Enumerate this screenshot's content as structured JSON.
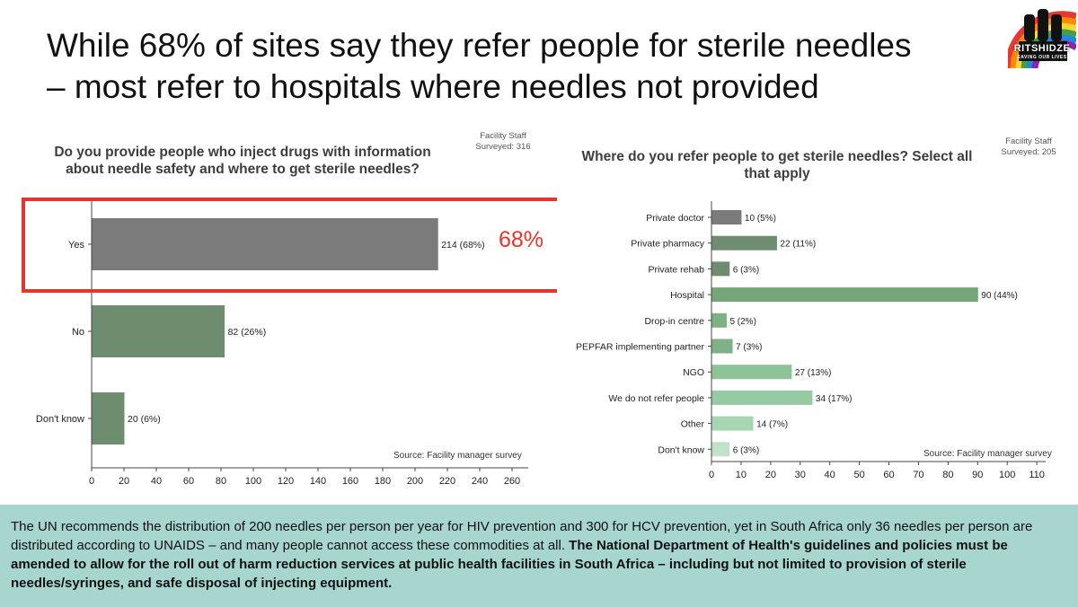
{
  "slide": {
    "title_line1": "While 68% of sites say they refer people for sterile needles",
    "title_line2": "– most refer to hospitals where needles not provided",
    "logo_text": "RITSHIDZE",
    "logo_subtext": "SAVING OUR LIVES"
  },
  "highlight_label": "68%",
  "footer": {
    "plain": "The UN recommends the distribution of 200 needles per person per year for HIV prevention and 300 for HCV prevention, yet in South Africa only 36 needles per person are distributed according to UNAIDS – and many people cannot access these commodities at all. ",
    "bold": "The National Department of Health's guidelines and policies must be amended to allow for the roll out of harm reduction services at public health facilities in South Africa – including but not limited to provision of sterile needles/syringes, and safe disposal of injecting equipment."
  },
  "colors": {
    "highlight": "#e8342b",
    "footer_bg": "#a7d6cf"
  },
  "chart_data": [
    {
      "type": "bar",
      "orientation": "horizontal",
      "title_line1": "Do you provide people who inject drugs with information",
      "title_line2": "about needle safety and where to get sterile needles?",
      "note_line1": "Facility Staff",
      "note_line2": "Surveyed: 316",
      "source": "Source: Facility manager survey",
      "categories": [
        "Yes",
        "No",
        "Don't know"
      ],
      "values": [
        214,
        82,
        20
      ],
      "labels": [
        "214 (68%)",
        "82 (26%)",
        "20 (6%)"
      ],
      "colors": [
        "#7b7b7b",
        "#6e8d6f",
        "#6e8d6f"
      ],
      "xlim": [
        0,
        270
      ],
      "xticks": [
        0,
        20,
        40,
        60,
        80,
        100,
        120,
        140,
        160,
        180,
        200,
        220,
        240,
        260
      ],
      "highlight_category": "Yes"
    },
    {
      "type": "bar",
      "orientation": "horizontal",
      "title_line1": "Where do you refer people to get sterile needles? Select all",
      "title_line2": "that apply",
      "note_line1": "Facility Staff",
      "note_line2": "Surveyed: 205",
      "source": "Source: Facility manager survey",
      "categories": [
        "Private doctor",
        "Private pharmacy",
        "Private rehab",
        "Hospital",
        "Drop-in centre",
        "PEPFAR implementing partner",
        "NGO",
        "We do not refer people",
        "Other",
        "Don't know"
      ],
      "values": [
        10,
        22,
        6,
        90,
        5,
        7,
        27,
        34,
        14,
        6
      ],
      "labels": [
        "10 (5%)",
        "22 (11%)",
        "6 (3%)",
        "90 (44%)",
        "5 (2%)",
        "7 (3%)",
        "27 (13%)",
        "34 (17%)",
        "14 (7%)",
        "6 (3%)"
      ],
      "colors": [
        "#7b7b7b",
        "#6e8d6f",
        "#6e8d6f",
        "#76a57a",
        "#7fb187",
        "#7fb187",
        "#8cc497",
        "#96caa2",
        "#a8d6b3",
        "#c1e2c8"
      ],
      "xlim": [
        0,
        113
      ],
      "xticks": [
        0,
        10,
        20,
        30,
        40,
        50,
        60,
        70,
        80,
        90,
        100,
        110
      ]
    }
  ]
}
